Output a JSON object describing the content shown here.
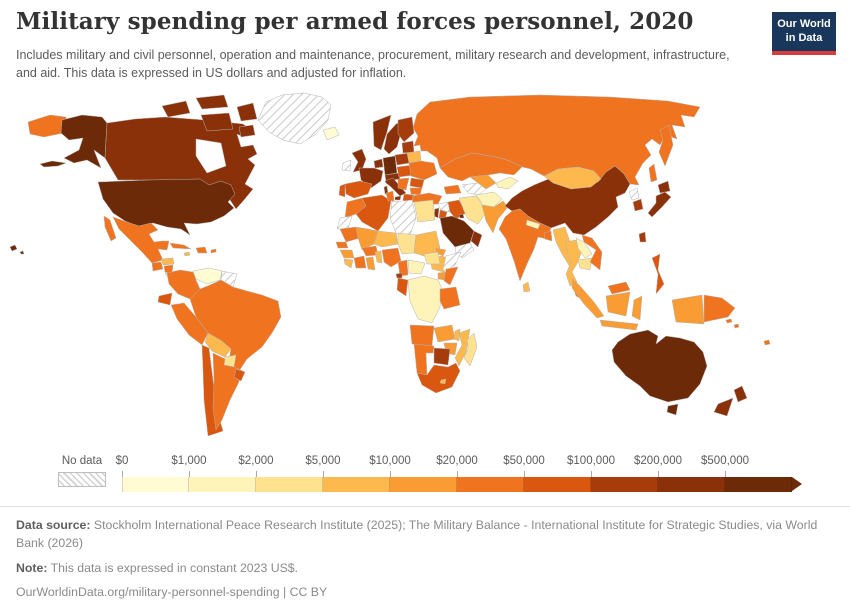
{
  "header": {
    "title": "Military spending per armed forces personnel, 2020",
    "subtitle": "Includes military and civil personnel, operation and maintenance, procurement, military research and development, infrastructure, and aid. This data is expressed in US dollars and adjusted for inflation.",
    "logo": {
      "line1": "Our World",
      "line2": "in Data",
      "bg_color": "#18375B",
      "accent_color": "#D73C3C"
    }
  },
  "legend": {
    "no_data_label": "No data",
    "tick_labels": [
      "$0",
      "$1,000",
      "$2,000",
      "$5,000",
      "$10,000",
      "$20,000",
      "$50,000",
      "$100,000",
      "$200,000",
      "$500,000"
    ],
    "colors": [
      "#FFFBD3",
      "#FEF3B9",
      "#FEE28F",
      "#FDB94D",
      "#FA9C34",
      "#F0741F",
      "#D9570E",
      "#A63B0B",
      "#8B3109",
      "#6D2A08"
    ]
  },
  "chart_data": {
    "type": "heatmap",
    "title": "Military spending per armed forces personnel, 2020",
    "legend_position": "bottom",
    "scale_type": "log-binned",
    "bins_usd": [
      0,
      1000,
      2000,
      5000,
      10000,
      20000,
      50000,
      100000,
      200000,
      500000
    ],
    "bin_colors": [
      "#FFFBD3",
      "#FEF3B9",
      "#FEE28F",
      "#FDB94D",
      "#FA9C34",
      "#F0741F",
      "#D9570E",
      "#A63B0B",
      "#8B3109",
      "#6D2A08"
    ],
    "no_data_style": "gray-hatch"
  },
  "map": {
    "countries": {
      "usa": 9,
      "canada": 8,
      "greenland": -1,
      "iceland": 0,
      "mexico": 5,
      "guatemala": 5,
      "honduras": 3,
      "nicaragua": 5,
      "costa_rica": 0,
      "panama": 2,
      "cuba": 5,
      "jamaica": 3,
      "hispaniola": 5,
      "puerto_rico": 5,
      "venezuela": 0,
      "colombia": 5,
      "guyanas": -1,
      "ecuador": 6,
      "peru": 5,
      "brazil": 5,
      "bolivia": 3,
      "paraguay": 2,
      "chile": 6,
      "argentina": 5,
      "uruguay": 6,
      "norway": 8,
      "sweden": 8,
      "finland": 7,
      "denmark": 8,
      "uk": 8,
      "ireland": -1,
      "benelux": 8,
      "germany": 9,
      "france": 8,
      "spain": 6,
      "portugal": 6,
      "italy": 8,
      "alpine": 8,
      "poland": 7,
      "central_europe": 6,
      "baltics": 7,
      "belarus": 3,
      "ukraine": 5,
      "romania": 6,
      "balkans": 5,
      "bulgaria": 5,
      "greece": 6,
      "russia": 5,
      "caucasus": 5,
      "turkey": 5,
      "syria": -1,
      "israel": 8,
      "jordan": 6,
      "iraq": 6,
      "iran": 2,
      "afghanistan": 1,
      "pakistan": 4,
      "saudi_arabia": 9,
      "kuwait": 9,
      "yemen": -1,
      "oman": 8,
      "turkmenistan": -1,
      "uzbekistan": 4,
      "kyrgyzstan_tajikistan": 1,
      "kazakhstan": 5,
      "mongolia": 3,
      "china": 8,
      "north_korea": -1,
      "south_korea": 7,
      "japan": 8,
      "taiwan": 7,
      "india": 5,
      "nepal": 1,
      "bangladesh": 5,
      "sri_lanka": 3,
      "myanmar": 3,
      "thailand": 3,
      "laos": 1,
      "cambodia": 2,
      "vietnam": 5,
      "malaysia": 5,
      "indonesia": 4,
      "philippines": 6,
      "papua_new_guinea": 5,
      "solomon_islands": 5,
      "fiji": 5,
      "australia": 9,
      "new_zealand": 8,
      "morocco": 5,
      "western_sahara": -1,
      "algeria": 6,
      "tunisia": 5,
      "libya": -1,
      "egypt": 2,
      "mauritania": 5,
      "mali": 4,
      "niger": 3,
      "chad": 2,
      "sudan": 3,
      "eritrea": 4,
      "ethiopia": 3,
      "somalia": -1,
      "senegal": 5,
      "guinea": 4,
      "sierra_leone": 3,
      "ivory_coast": 5,
      "ghana": 4,
      "burkina_faso": 5,
      "benin": 3,
      "nigeria": 5,
      "cameroon": 5,
      "central_african_republic": 1,
      "south_sudan": 2,
      "dr_congo": 1,
      "congo": 6,
      "equatorial_guinea": 7,
      "uganda": 4,
      "kenya": 5,
      "tanzania": 5,
      "angola": 5,
      "zambia": 4,
      "malawi": 3,
      "mozambique": 3,
      "zimbabwe": 4,
      "botswana": 7,
      "namibia": 5,
      "south_africa": 6,
      "lesotho": 3,
      "madagascar": 2
    }
  },
  "footer": {
    "data_source_label": "Data source:",
    "data_source": " Stockholm International Peace Research Institute (2025); The Military Balance - International Institute for Strategic Studies, via World Bank (2026)",
    "note_label": "Note:",
    "note": " This data is expressed in constant 2023 US$.",
    "attribution": "OurWorldinData.org/military-personnel-spending | CC BY"
  }
}
